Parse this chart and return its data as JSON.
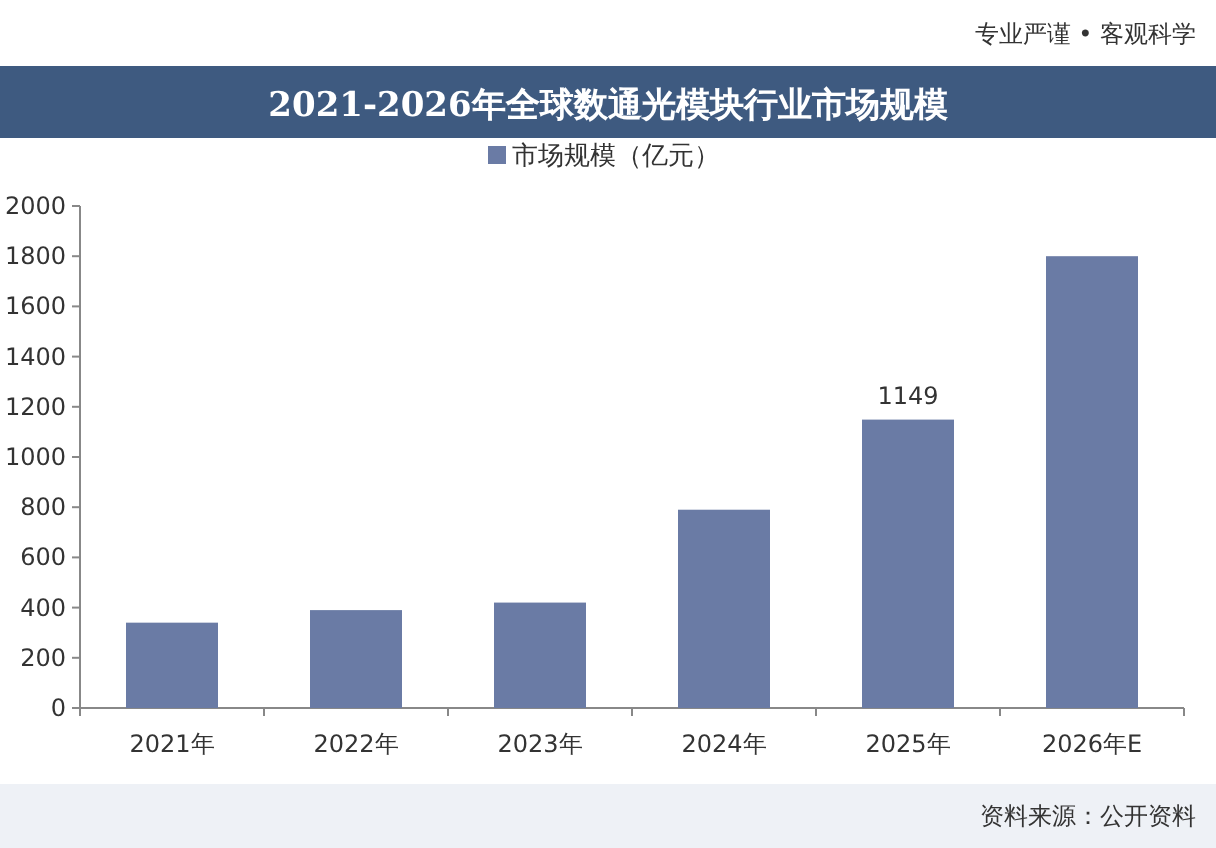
{
  "chart_data": {
    "type": "bar",
    "title": "2021-2026年全球数通光模块行业市场规模",
    "categories": [
      "2021年",
      "2022年",
      "2023年",
      "2024年",
      "2025年",
      "2026年E"
    ],
    "series": [
      {
        "name": "市场规模（亿元）",
        "color": "#6a7ba5",
        "values": [
          340,
          390,
          420,
          790,
          1149,
          1800
        ],
        "value_labels": [
          null,
          null,
          null,
          null,
          "1149",
          null
        ]
      }
    ],
    "ylim": [
      0,
      2000
    ],
    "yticks": [
      0,
      200,
      400,
      600,
      800,
      1000,
      1200,
      1400,
      1600,
      1800,
      2000
    ],
    "legend": "top",
    "grid": false,
    "annotations": [
      "专业严谨 • 客观科学",
      "资料来源：公开资料"
    ]
  }
}
